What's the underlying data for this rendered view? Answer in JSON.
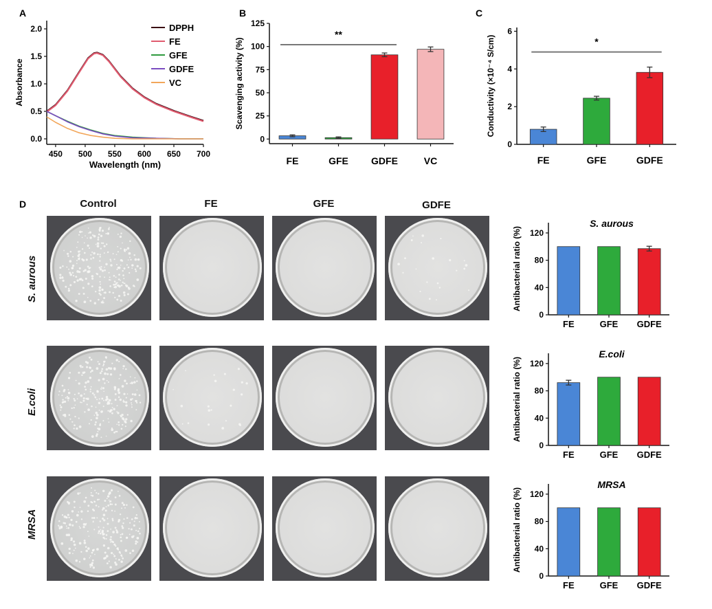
{
  "panels": {
    "A": "A",
    "B": "B",
    "C": "C",
    "D": "D"
  },
  "chart_data": [
    {
      "id": "A",
      "type": "line",
      "title": "",
      "xlabel": "Wavelength (nm)",
      "ylabel": "Absorbance",
      "xlim": [
        435,
        700
      ],
      "ylim": [
        -0.1,
        2.15
      ],
      "xticks": [
        450,
        500,
        550,
        600,
        650,
        700
      ],
      "yticks": [
        0.0,
        0.5,
        1.0,
        1.5,
        2.0
      ],
      "ytick_labels": [
        "0.0",
        "0.5",
        "1.0",
        "1.5",
        "2.0"
      ],
      "legend_position": "top-right",
      "series": [
        {
          "name": "DPPH",
          "color": "#3a0a12",
          "x": [
            435,
            450,
            470,
            490,
            505,
            515,
            520,
            530,
            540,
            560,
            580,
            600,
            620,
            650,
            680,
            700
          ],
          "y": [
            0.5,
            0.62,
            0.88,
            1.22,
            1.47,
            1.56,
            1.57,
            1.53,
            1.42,
            1.14,
            0.92,
            0.76,
            0.64,
            0.51,
            0.4,
            0.33
          ]
        },
        {
          "name": "FE",
          "color": "#e05a6e",
          "x": [
            435,
            450,
            470,
            490,
            505,
            515,
            520,
            530,
            540,
            560,
            580,
            600,
            620,
            650,
            680,
            700
          ],
          "y": [
            0.49,
            0.61,
            0.87,
            1.21,
            1.46,
            1.55,
            1.56,
            1.52,
            1.41,
            1.13,
            0.91,
            0.75,
            0.63,
            0.5,
            0.39,
            0.32
          ]
        },
        {
          "name": "GFE",
          "color": "#2e9a3e",
          "x": [
            435,
            450,
            470,
            490,
            510,
            530,
            550,
            580,
            620,
            660,
            700
          ],
          "y": [
            0.5,
            0.42,
            0.32,
            0.23,
            0.16,
            0.1,
            0.06,
            0.03,
            0.01,
            0.0,
            0.0
          ]
        },
        {
          "name": "GDFE",
          "color": "#7a4cc0",
          "x": [
            435,
            450,
            470,
            490,
            510,
            530,
            550,
            580,
            620,
            660,
            700
          ],
          "y": [
            0.5,
            0.42,
            0.31,
            0.22,
            0.15,
            0.09,
            0.05,
            0.02,
            0.01,
            0.0,
            0.0
          ]
        },
        {
          "name": "VC",
          "color": "#f2a65a",
          "x": [
            435,
            450,
            470,
            490,
            510,
            530,
            550,
            580,
            620,
            660,
            700
          ],
          "y": [
            0.4,
            0.3,
            0.19,
            0.11,
            0.06,
            0.03,
            0.01,
            0.0,
            0.0,
            0.0,
            0.0
          ]
        }
      ]
    },
    {
      "id": "B",
      "type": "bar",
      "title": "",
      "xlabel": "",
      "ylabel": "Scavenging activity (%)",
      "ylim": [
        -5,
        125
      ],
      "yticks": [
        0,
        25,
        50,
        75,
        100,
        125
      ],
      "categories": [
        "FE",
        "GFE",
        "GDFE",
        "VC"
      ],
      "values": [
        3.5,
        1.5,
        91,
        97
      ],
      "errors": [
        1.0,
        0.8,
        2.0,
        2.5
      ],
      "colors": [
        "#4a86d6",
        "#2eaa3c",
        "#e8202a",
        "#f4b6b8"
      ],
      "significance": {
        "from": "FE",
        "to": "GDFE",
        "y": 102,
        "label": "**"
      }
    },
    {
      "id": "C",
      "type": "bar",
      "title": "",
      "xlabel": "",
      "ylabel": "Conductivity (×10⁻⁴ S/cm)",
      "ylim": [
        0,
        6.2
      ],
      "yticks": [
        0,
        2,
        4,
        6
      ],
      "categories": [
        "FE",
        "GFE",
        "GDFE"
      ],
      "values": [
        0.8,
        2.45,
        3.82
      ],
      "errors": [
        0.12,
        0.1,
        0.28
      ],
      "colors": [
        "#4a86d6",
        "#2eaa3c",
        "#e8202a"
      ],
      "significance": {
        "from": "FE",
        "to": "GDFE",
        "y": 4.9,
        "label": "*"
      }
    },
    {
      "id": "D1",
      "type": "bar",
      "title": "S. aurous",
      "xlabel": "",
      "ylabel": "Antibacterial ratio (%)",
      "ylim": [
        0,
        135
      ],
      "yticks": [
        0,
        40,
        80,
        120
      ],
      "categories": [
        "FE",
        "GFE",
        "GDFE"
      ],
      "values": [
        100,
        100,
        97
      ],
      "errors": [
        0,
        0,
        3.5
      ],
      "colors": [
        "#4a86d6",
        "#2eaa3c",
        "#e8202a"
      ]
    },
    {
      "id": "D2",
      "type": "bar",
      "title": "E.coli",
      "xlabel": "",
      "ylabel": "Antibacterial ratio (%)",
      "ylim": [
        0,
        135
      ],
      "yticks": [
        0,
        40,
        80,
        120
      ],
      "categories": [
        "FE",
        "GFE",
        "GDFE"
      ],
      "values": [
        92,
        100,
        100
      ],
      "errors": [
        3.5,
        0,
        0
      ],
      "colors": [
        "#4a86d6",
        "#2eaa3c",
        "#e8202a"
      ]
    },
    {
      "id": "D3",
      "type": "bar",
      "title": "MRSA",
      "xlabel": "",
      "ylabel": "Antibacterial ratio (%)",
      "ylim": [
        0,
        135
      ],
      "yticks": [
        0,
        40,
        80,
        120
      ],
      "categories": [
        "FE",
        "GFE",
        "GDFE"
      ],
      "values": [
        100,
        100,
        100
      ],
      "errors": [
        0,
        0,
        0
      ],
      "colors": [
        "#4a86d6",
        "#2eaa3c",
        "#e8202a"
      ]
    }
  ],
  "plates": {
    "columns": [
      "Control",
      "FE",
      "GFE",
      "GDFE"
    ],
    "rows": [
      {
        "label": "S. aurous",
        "colonies": [
          "many",
          "none",
          "none",
          "few"
        ]
      },
      {
        "label": "E.coli",
        "colonies": [
          "many",
          "few",
          "none",
          "none"
        ]
      },
      {
        "label": "MRSA",
        "colonies": [
          "many",
          "none",
          "none",
          "none"
        ]
      }
    ]
  }
}
